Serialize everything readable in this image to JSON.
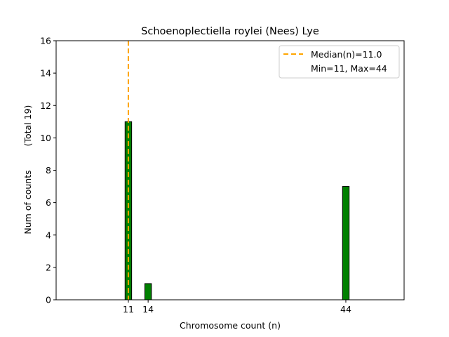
{
  "chart_data": {
    "type": "bar",
    "title": "Schoenoplectiella roylei (Nees) Lye",
    "xlabel": "Chromosome count (n)",
    "ylabel": "Num of counts",
    "ylabel_total": "(Total 19)",
    "categories": [
      11,
      14,
      44
    ],
    "values": [
      11,
      1,
      7
    ],
    "zero_bins_range": [
      10.5,
      47.5
    ],
    "xlim": [
      0.04,
      52.84
    ],
    "ylim": [
      0,
      16
    ],
    "xticks": [
      11,
      14,
      44
    ],
    "yticks": [
      0,
      2,
      4,
      6,
      8,
      10,
      12,
      14,
      16
    ],
    "median": 11.0,
    "grid": false,
    "legend": {
      "placement": "top-right",
      "entries": [
        "Median(n)=11.0",
        "Min=11, Max=44"
      ]
    },
    "colors": {
      "bar": "#008000",
      "median": "#ffa500",
      "edge": "#000000"
    }
  }
}
